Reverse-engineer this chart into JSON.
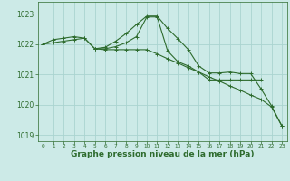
{
  "background_color": "#cceae7",
  "grid_color": "#aad4d0",
  "line_color": "#2d6b2d",
  "xlabel": "Graphe pression niveau de la mer (hPa)",
  "ylim": [
    1018.8,
    1023.4
  ],
  "xlim": [
    -0.5,
    23.5
  ],
  "yticks": [
    1019,
    1020,
    1021,
    1022,
    1023
  ],
  "xticks": [
    0,
    1,
    2,
    3,
    4,
    5,
    6,
    7,
    8,
    9,
    10,
    11,
    12,
    13,
    14,
    15,
    16,
    17,
    18,
    19,
    20,
    21,
    22,
    23
  ],
  "line1_x": [
    0,
    1,
    2,
    3,
    4,
    5,
    6,
    7,
    8,
    9,
    10,
    11,
    12,
    13,
    14,
    15,
    16,
    17,
    18,
    19,
    20,
    21,
    22,
    23
  ],
  "line1_y": [
    1022.0,
    1022.15,
    1022.2,
    1022.25,
    1022.2,
    1021.85,
    1021.82,
    1021.82,
    1021.82,
    1021.82,
    1021.82,
    1021.68,
    1021.52,
    1021.38,
    1021.22,
    1021.08,
    1020.92,
    1020.78,
    1020.62,
    1020.48,
    1020.32,
    1020.18,
    1019.93,
    1019.3
  ],
  "line2_x": [
    0,
    1,
    2,
    3,
    4,
    5,
    6,
    7,
    8,
    9,
    10,
    11,
    12,
    13,
    14,
    15,
    16,
    17,
    18,
    19,
    20,
    21,
    22,
    23
  ],
  "line2_y": [
    1022.0,
    1022.05,
    1022.1,
    1022.15,
    1022.2,
    1021.85,
    1021.9,
    1022.1,
    1022.35,
    1022.65,
    1022.93,
    1022.93,
    1022.52,
    1022.18,
    1021.82,
    1021.28,
    1021.05,
    1021.05,
    1021.08,
    1021.03,
    1021.03,
    1020.52,
    1019.97,
    1019.3
  ],
  "line3_x": [
    5,
    6,
    7,
    8,
    9,
    10,
    11,
    12,
    13,
    14,
    15,
    16,
    17,
    18,
    19,
    20,
    21
  ],
  "line3_y": [
    1021.85,
    1021.85,
    1021.92,
    1022.05,
    1022.25,
    1022.9,
    1022.9,
    1021.78,
    1021.42,
    1021.28,
    1021.08,
    1020.82,
    1020.82,
    1020.82,
    1020.82,
    1020.82,
    1020.82
  ]
}
